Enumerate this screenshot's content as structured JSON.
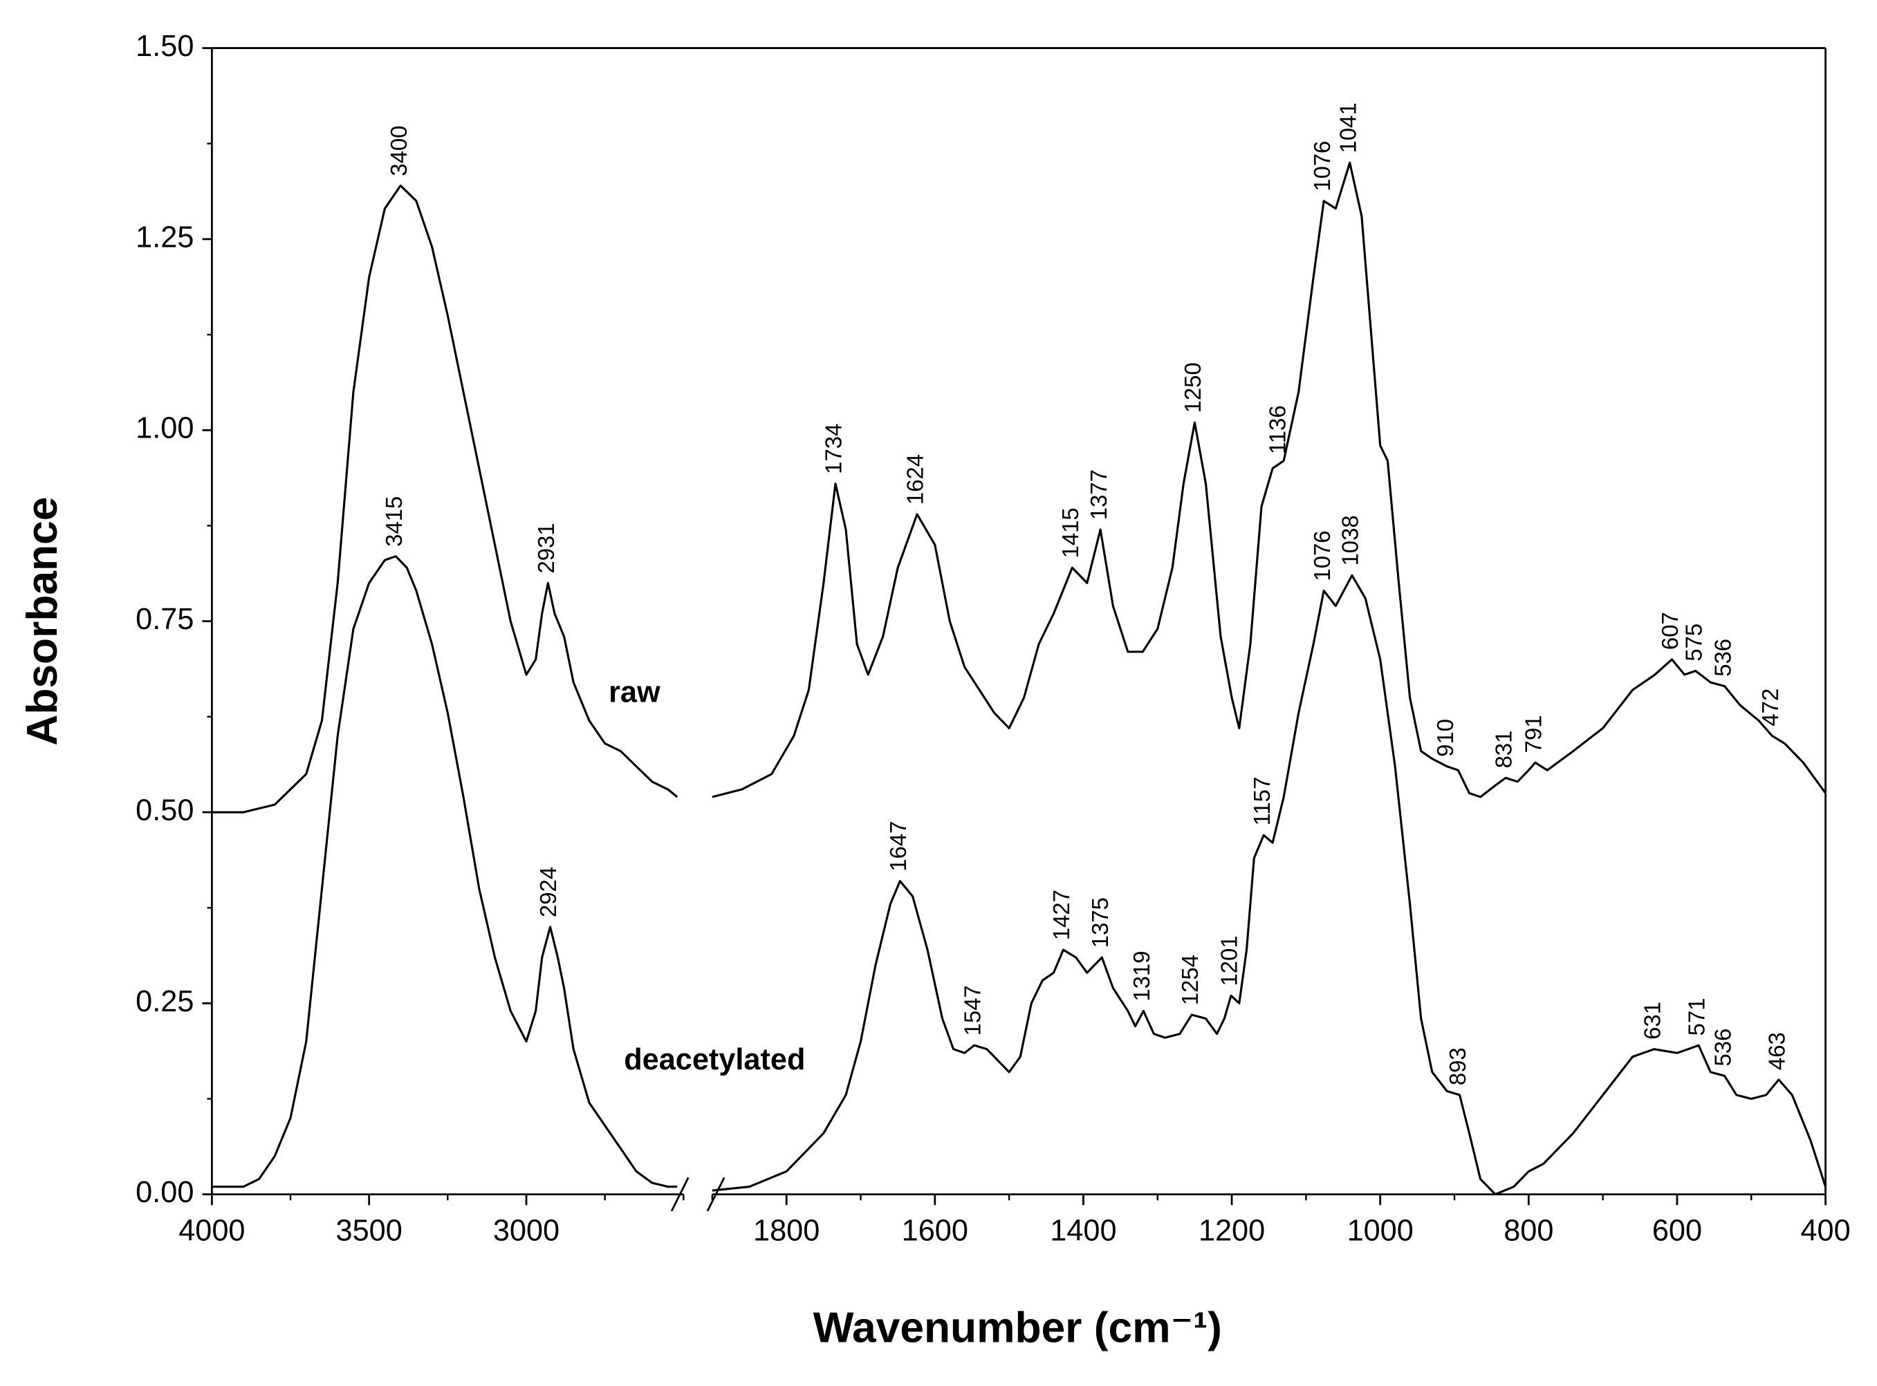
{
  "chart_data": {
    "type": "line",
    "xlabel": "Wavenumber (cm⁻¹)",
    "ylabel": "Absorbance",
    "ylim": [
      0,
      1.5
    ],
    "yticks": [
      {
        "value": 0,
        "label": "0.00"
      },
      {
        "value": 0.25,
        "label": "0.25"
      },
      {
        "value": 0.5,
        "label": "0.50"
      },
      {
        "value": 0.75,
        "label": "0.75"
      },
      {
        "value": 1,
        "label": "1.00"
      },
      {
        "value": 1.25,
        "label": "1.25"
      },
      {
        "value": 1.5,
        "label": "1.50"
      }
    ],
    "x_segments": [
      {
        "xlim": [
          4000,
          2500
        ],
        "xticks": [
          4000,
          3500,
          3000
        ]
      },
      {
        "xlim": [
          1900,
          400
        ],
        "xticks": [
          1800,
          1600,
          1400,
          1200,
          1000,
          800,
          600,
          400
        ]
      }
    ],
    "series": [
      {
        "name": "raw",
        "color": "#000000",
        "x": [
          4000,
          3900,
          3800,
          3700,
          3650,
          3600,
          3550,
          3500,
          3450,
          3400,
          3350,
          3300,
          3250,
          3200,
          3150,
          3100,
          3050,
          3000,
          2970,
          2950,
          2931,
          2910,
          2880,
          2850,
          2800,
          2750,
          2700,
          2650,
          2600,
          2550,
          2520,
          null,
          1900,
          1860,
          1820,
          1790,
          1770,
          1750,
          1734,
          1720,
          1705,
          1690,
          1670,
          1650,
          1624,
          1600,
          1580,
          1560,
          1520,
          1500,
          1480,
          1460,
          1440,
          1415,
          1395,
          1377,
          1360,
          1340,
          1320,
          1300,
          1280,
          1265,
          1250,
          1235,
          1215,
          1200,
          1190,
          1175,
          1160,
          1145,
          1130,
          1110,
          1090,
          1076,
          1060,
          1041,
          1025,
          1010,
          1000,
          990,
          975,
          960,
          945,
          930,
          910,
          895,
          880,
          865,
          845,
          831,
          815,
          800,
          791,
          775,
          740,
          700,
          660,
          630,
          607,
          590,
          575,
          555,
          536,
          515,
          490,
          472,
          455,
          430,
          400
        ],
        "values": [
          0.5,
          0.5,
          0.51,
          0.55,
          0.62,
          0.8,
          1.05,
          1.2,
          1.29,
          1.32,
          1.3,
          1.24,
          1.15,
          1.05,
          0.95,
          0.85,
          0.75,
          0.68,
          0.7,
          0.76,
          0.8,
          0.76,
          0.73,
          0.67,
          0.62,
          0.59,
          0.58,
          0.56,
          0.54,
          0.53,
          0.52,
          null,
          0.52,
          0.53,
          0.55,
          0.6,
          0.66,
          0.8,
          0.93,
          0.87,
          0.72,
          0.68,
          0.73,
          0.82,
          0.89,
          0.85,
          0.75,
          0.69,
          0.63,
          0.61,
          0.65,
          0.72,
          0.76,
          0.82,
          0.8,
          0.87,
          0.77,
          0.71,
          0.71,
          0.74,
          0.82,
          0.93,
          1.01,
          0.93,
          0.73,
          0.65,
          0.61,
          0.72,
          0.9,
          0.95,
          0.96,
          1.05,
          1.2,
          1.3,
          1.29,
          1.35,
          1.28,
          1.1,
          0.98,
          0.96,
          0.8,
          0.65,
          0.58,
          0.57,
          0.56,
          0.555,
          0.525,
          0.52,
          0.535,
          0.545,
          0.54,
          0.555,
          0.565,
          0.555,
          0.58,
          0.61,
          0.66,
          0.68,
          0.7,
          0.68,
          0.685,
          0.67,
          0.665,
          0.64,
          0.62,
          0.6,
          0.59,
          0.565,
          0.525
        ],
        "peak_labels": [
          3400,
          2931,
          1734,
          1624,
          1415,
          1377,
          1250,
          1136,
          1076,
          1041,
          910,
          831,
          791,
          607,
          575,
          536,
          472
        ]
      },
      {
        "name": "deacetylated",
        "color": "#000000",
        "x": [
          4000,
          3900,
          3850,
          3800,
          3750,
          3700,
          3650,
          3600,
          3550,
          3500,
          3450,
          3415,
          3380,
          3350,
          3300,
          3250,
          3200,
          3150,
          3100,
          3050,
          3000,
          2970,
          2950,
          2924,
          2900,
          2880,
          2850,
          2800,
          2750,
          2700,
          2650,
          2600,
          2550,
          2520,
          null,
          1900,
          1850,
          1800,
          1750,
          1720,
          1700,
          1680,
          1660,
          1647,
          1630,
          1610,
          1590,
          1575,
          1560,
          1547,
          1530,
          1510,
          1500,
          1485,
          1470,
          1455,
          1440,
          1427,
          1410,
          1395,
          1375,
          1360,
          1340,
          1330,
          1319,
          1305,
          1290,
          1270,
          1254,
          1235,
          1220,
          1210,
          1201,
          1190,
          1180,
          1170,
          1157,
          1145,
          1130,
          1110,
          1090,
          1076,
          1060,
          1038,
          1020,
          1000,
          980,
          960,
          945,
          930,
          910,
          893,
          880,
          865,
          845,
          820,
          800,
          780,
          740,
          700,
          660,
          631,
          600,
          585,
          571,
          555,
          536,
          520,
          500,
          480,
          463,
          445,
          420,
          400
        ],
        "values": [
          0.01,
          0.01,
          0.02,
          0.05,
          0.1,
          0.2,
          0.4,
          0.6,
          0.74,
          0.8,
          0.83,
          0.835,
          0.82,
          0.79,
          0.72,
          0.63,
          0.52,
          0.4,
          0.31,
          0.24,
          0.2,
          0.24,
          0.31,
          0.35,
          0.31,
          0.27,
          0.19,
          0.12,
          0.09,
          0.06,
          0.03,
          0.015,
          0.01,
          0.01,
          null,
          0.005,
          0.01,
          0.03,
          0.08,
          0.13,
          0.2,
          0.3,
          0.38,
          0.41,
          0.39,
          0.32,
          0.23,
          0.19,
          0.185,
          0.195,
          0.19,
          0.17,
          0.16,
          0.18,
          0.25,
          0.28,
          0.29,
          0.32,
          0.31,
          0.29,
          0.31,
          0.27,
          0.24,
          0.22,
          0.24,
          0.21,
          0.205,
          0.21,
          0.235,
          0.23,
          0.21,
          0.23,
          0.26,
          0.25,
          0.32,
          0.44,
          0.47,
          0.46,
          0.52,
          0.63,
          0.72,
          0.79,
          0.77,
          0.81,
          0.78,
          0.7,
          0.56,
          0.38,
          0.23,
          0.16,
          0.135,
          0.13,
          0.08,
          0.02,
          0.0,
          0.01,
          0.03,
          0.04,
          0.08,
          0.13,
          0.18,
          0.19,
          0.185,
          0.19,
          0.195,
          0.16,
          0.155,
          0.13,
          0.125,
          0.13,
          0.15,
          0.13,
          0.07,
          0.01
        ],
        "peak_labels": [
          3415,
          2924,
          1647,
          1547,
          1427,
          1375,
          1319,
          1254,
          1201,
          1157,
          1076,
          1038,
          893,
          631,
          571,
          536,
          463
        ]
      }
    ]
  }
}
